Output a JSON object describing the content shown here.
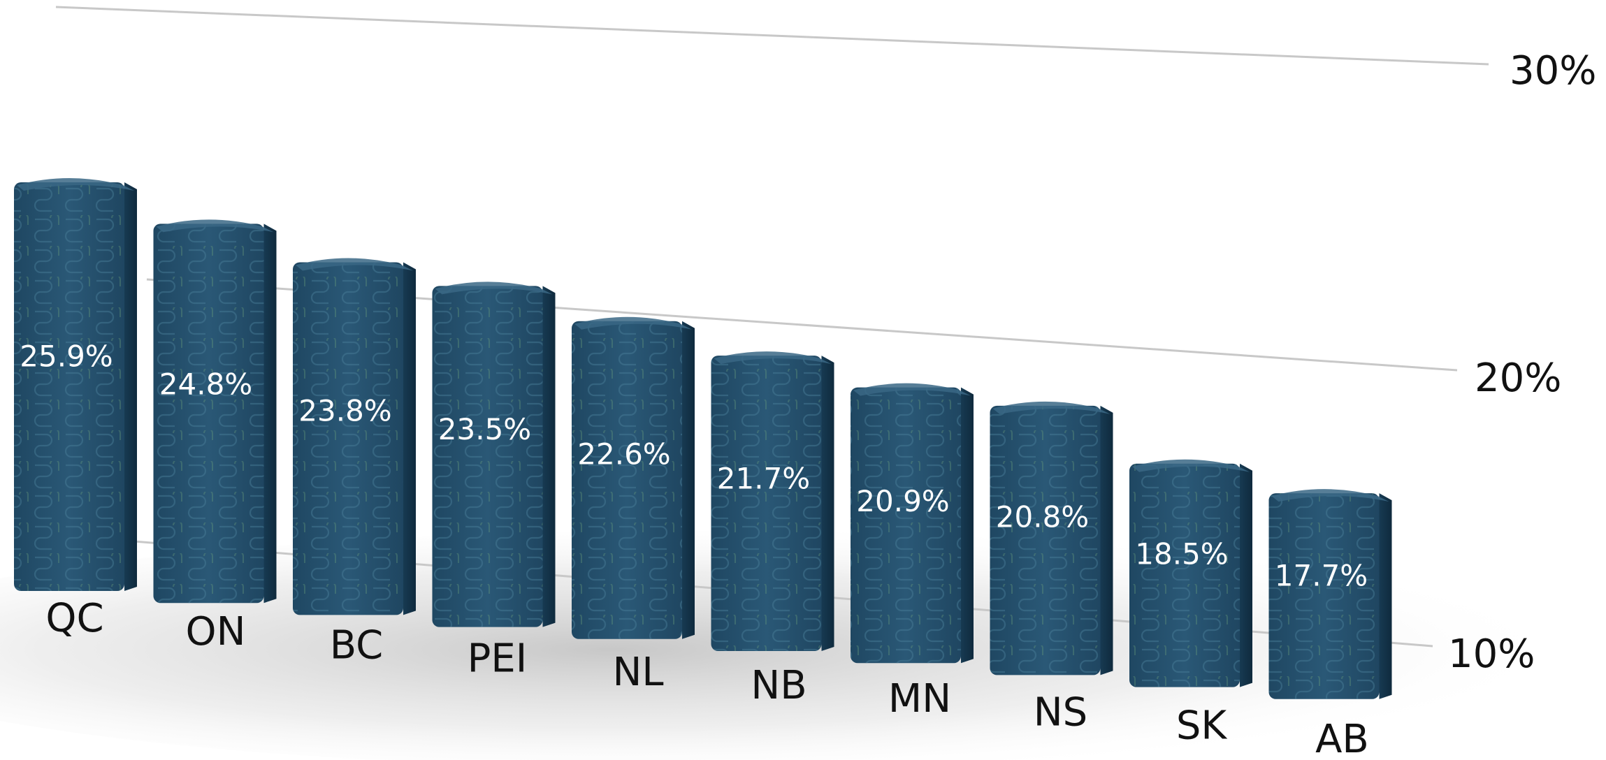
{
  "chart_data": {
    "type": "bar",
    "categories": [
      "QC",
      "ON",
      "BC",
      "PEI",
      "NL",
      "NB",
      "MN",
      "NS",
      "SK",
      "AB"
    ],
    "values": [
      25.9,
      24.8,
      23.8,
      23.5,
      22.6,
      21.7,
      20.9,
      20.8,
      18.5,
      17.7
    ],
    "value_labels": [
      "25.9%",
      "24.8%",
      "23.8%",
      "23.5%",
      "22.6%",
      "21.7%",
      "20.9%",
      "20.8%",
      "18.5%",
      "17.7%"
    ],
    "ylim": [
      10,
      30
    ],
    "yticks": [
      10,
      20,
      30
    ],
    "ytick_labels": [
      "10%",
      "20%",
      "30%"
    ],
    "grid": true,
    "style": "3d-perspective",
    "colors": {
      "bar_front": "#25506c",
      "bar_side": "#15334a",
      "bar_top": "#3a6785",
      "bar_pattern": "#3f7490",
      "gridline": "#c8c8c8",
      "value_label": "#ffffff",
      "category_label": "#111111"
    }
  }
}
